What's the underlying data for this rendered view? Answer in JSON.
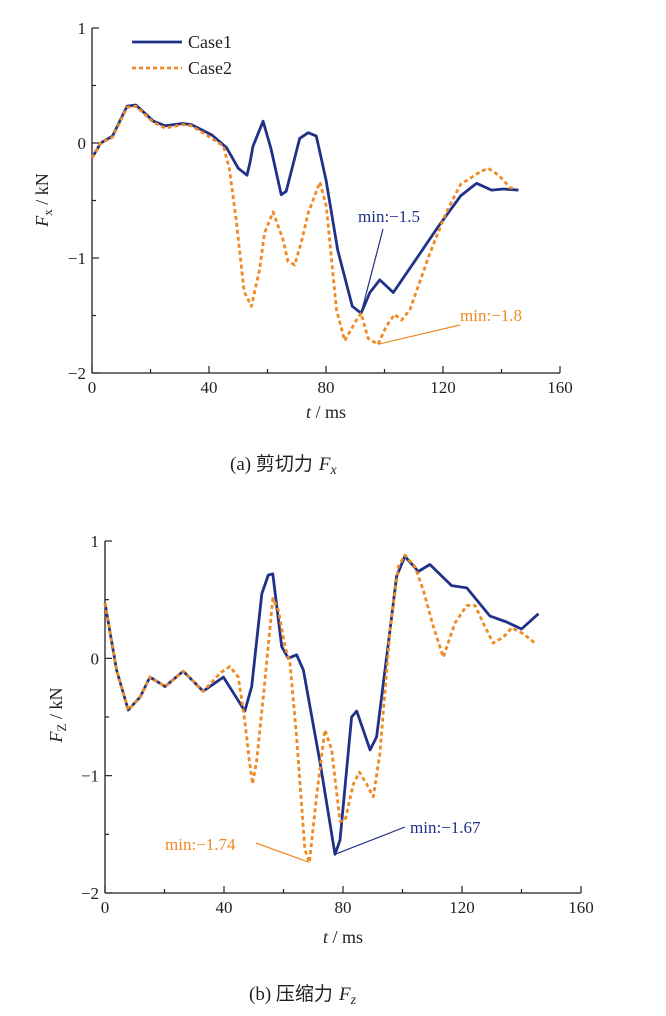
{
  "colors": {
    "case1": "#1f3287",
    "case2": "#f08a24",
    "axis": "#231f20"
  },
  "chart_data": [
    {
      "type": "line",
      "caption": {
        "prefix": "(a)",
        "text": "剪切力",
        "symbol": "F",
        "sub": "x"
      },
      "xlabel": {
        "symbol": "t",
        "unit": " / ms"
      },
      "ylabel": {
        "symbol": "F",
        "sub": "x",
        "unit": " / kN"
      },
      "xlim": [
        0,
        160
      ],
      "ylim": [
        -2,
        1
      ],
      "xticks": [
        0,
        40,
        80,
        120,
        160
      ],
      "xtick_labels": [
        "0",
        "40",
        "80",
        "120",
        "160"
      ],
      "yticks": [
        -2,
        -1,
        0,
        1
      ],
      "ytick_labels": [
        "−2",
        "−1",
        "0",
        "1"
      ],
      "grid": false,
      "legend": {
        "placement": "top-left",
        "entries": [
          "Case1",
          "Case2"
        ]
      },
      "series": [
        {
          "name": "Case1",
          "style": "solid",
          "x": [
            0,
            3,
            7,
            12,
            15,
            21,
            25,
            31,
            34,
            41,
            46,
            50,
            53,
            54,
            55,
            58.5,
            61.3,
            64.7,
            66.4,
            71,
            73.9,
            76.7,
            80,
            84,
            89,
            92,
            95,
            98.4,
            103,
            110,
            118,
            126,
            131.5,
            136.6,
            140.6,
            145.8
          ],
          "y": [
            -0.13,
            0,
            0.06,
            0.32,
            0.33,
            0.19,
            0.15,
            0.17,
            0.16,
            0.07,
            -0.04,
            -0.22,
            -0.28,
            -0.17,
            -0.03,
            0.19,
            -0.06,
            -0.45,
            -0.42,
            0.04,
            0.09,
            0.06,
            -0.32,
            -0.93,
            -1.42,
            -1.48,
            -1.3,
            -1.19,
            -1.3,
            -1.04,
            -0.74,
            -0.46,
            -0.35,
            -0.41,
            -0.4,
            -0.41
          ]
        },
        {
          "name": "Case2",
          "style": "dashed",
          "x": [
            0,
            3,
            7,
            12,
            15,
            21,
            25,
            31,
            34,
            41,
            45,
            47,
            49.3,
            52,
            54.5,
            57.3,
            59,
            61.9,
            65.3,
            67,
            69.3,
            71.6,
            73.9,
            77.9,
            80.1,
            83.6,
            86.4,
            90.4,
            92,
            94.4,
            97.8,
            100.7,
            103.5,
            105.8,
            108.7,
            115.5,
            121,
            126,
            132.7,
            135.5,
            139,
            143,
            145
          ],
          "y": [
            -0.13,
            0,
            0.05,
            0.31,
            0.32,
            0.18,
            0.13,
            0.16,
            0.15,
            0.04,
            -0.03,
            -0.23,
            -0.67,
            -1.29,
            -1.42,
            -1.1,
            -0.78,
            -0.6,
            -0.84,
            -1.03,
            -1.06,
            -0.86,
            -0.61,
            -0.34,
            -0.55,
            -1.45,
            -1.72,
            -1.54,
            -1.48,
            -1.7,
            -1.75,
            -1.59,
            -1.49,
            -1.54,
            -1.45,
            -0.96,
            -0.61,
            -0.36,
            -0.25,
            -0.22,
            -0.28,
            -0.39,
            -0.39
          ]
        }
      ],
      "annotations": [
        {
          "text": "min:−1.5",
          "series": "Case1",
          "x": 92,
          "y": -1.48
        },
        {
          "text": "min:−1.8",
          "series": "Case2",
          "x": 97.8,
          "y": -1.75
        }
      ]
    },
    {
      "type": "line",
      "caption": {
        "prefix": "(b)",
        "text": "压缩力",
        "symbol": "F",
        "sub": "z"
      },
      "xlabel": {
        "symbol": "t",
        "unit": " / ms"
      },
      "ylabel": {
        "symbol": "F",
        "sub": "Z",
        "unit": " / kN"
      },
      "xlim": [
        0,
        160
      ],
      "ylim": [
        -2,
        1
      ],
      "xticks": [
        0,
        40,
        80,
        120,
        160
      ],
      "xtick_labels": [
        "0",
        "40",
        "80",
        "120",
        "160"
      ],
      "yticks": [
        -2,
        -1,
        0,
        1
      ],
      "ytick_labels": [
        "−2",
        "−1",
        "0",
        "1"
      ],
      "grid": false,
      "series": [
        {
          "name": "Case1",
          "style": "solid",
          "x": [
            0,
            3.9,
            7.8,
            11.8,
            15.1,
            20.2,
            26.3,
            33,
            39.8,
            44.3,
            47,
            49.3,
            52.7,
            54.9,
            56.4,
            59.4,
            61.6,
            64.4,
            66.7,
            72.3,
            77.3,
            79,
            82.9,
            84.6,
            89.1,
            91.3,
            95.8,
            98,
            100.8,
            105.3,
            109.2,
            116.5,
            121.6,
            129.4,
            135,
            140,
            145.7
          ],
          "y": [
            0.47,
            -0.1,
            -0.44,
            -0.33,
            -0.16,
            -0.24,
            -0.11,
            -0.28,
            -0.16,
            -0.34,
            -0.45,
            -0.24,
            0.55,
            0.71,
            0.72,
            0.1,
            0,
            0.03,
            -0.1,
            -0.89,
            -1.67,
            -1.55,
            -0.5,
            -0.45,
            -0.78,
            -0.67,
            0.24,
            0.7,
            0.87,
            0.74,
            0.8,
            0.62,
            0.6,
            0.36,
            0.31,
            0.25,
            0.38
          ]
        },
        {
          "name": "Case2",
          "style": "dashed",
          "x": [
            0,
            3.9,
            7.8,
            11.8,
            15.1,
            20.2,
            26.3,
            33,
            39,
            42,
            44.8,
            47,
            48.5,
            49.6,
            51,
            53.2,
            56.4,
            58.3,
            60.5,
            62.2,
            64.4,
            67.2,
            68.7,
            71.1,
            73.9,
            76.2,
            79,
            80.7,
            83.5,
            85.5,
            87.9,
            90.2,
            92.4,
            95.8,
            98.6,
            100.8,
            104.2,
            107,
            110.4,
            113.7,
            117.6,
            121.6,
            124.4,
            127.7,
            130.5,
            133.9,
            136.7,
            140.6,
            144.5
          ],
          "y": [
            0.47,
            -0.1,
            -0.44,
            -0.33,
            -0.16,
            -0.24,
            -0.11,
            -0.28,
            -0.12,
            -0.07,
            -0.16,
            -0.53,
            -0.87,
            -1.07,
            -0.87,
            -0.33,
            0.51,
            0.41,
            0.1,
            -0.04,
            -0.67,
            -1.63,
            -1.74,
            -1.18,
            -0.61,
            -0.78,
            -1.39,
            -1.38,
            -1.07,
            -0.97,
            -1.07,
            -1.18,
            -0.81,
            0.24,
            0.78,
            0.88,
            0.78,
            0.58,
            0.27,
            0.01,
            0.3,
            0.45,
            0.45,
            0.27,
            0.13,
            0.18,
            0.26,
            0.21,
            0.13
          ]
        }
      ],
      "annotations": [
        {
          "text": "min:−1.74",
          "series": "Case2",
          "x": 68.7,
          "y": -1.74
        },
        {
          "text": "min:−1.67",
          "series": "Case1",
          "x": 77.3,
          "y": -1.67
        }
      ]
    }
  ]
}
